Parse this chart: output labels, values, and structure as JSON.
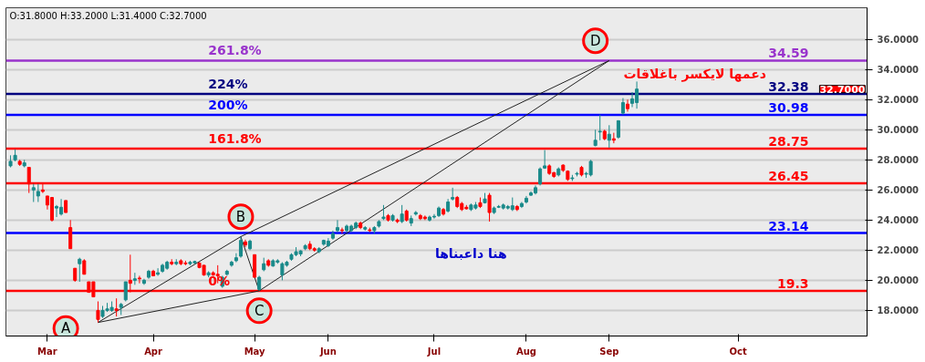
{
  "chart_data": {
    "type": "candlestick",
    "categories": [
      null,
      null,
      null,
      null,
      null,
      null,
      null,
      null,
      "Mar",
      null,
      null,
      null,
      null,
      null,
      null,
      null,
      null,
      null,
      null,
      null,
      null,
      null,
      null,
      null,
      null,
      null,
      null,
      null,
      null,
      null,
      null,
      "Apr",
      null,
      null,
      null,
      null,
      null,
      null,
      null,
      null,
      null,
      null,
      null,
      null,
      null,
      null,
      null,
      null,
      null,
      null,
      null,
      null,
      null,
      "May",
      null,
      null,
      null,
      null,
      null,
      null,
      null,
      null,
      null,
      null,
      null,
      null,
      null,
      null,
      null,
      "Jun",
      null,
      null,
      null,
      null,
      null,
      null,
      null,
      null,
      null,
      null,
      null,
      null,
      null,
      null,
      null,
      null,
      null,
      null,
      null,
      null,
      null,
      null,
      "Jul",
      null,
      null,
      null,
      null,
      null,
      null,
      null,
      null,
      null,
      null,
      null,
      null,
      null,
      null,
      null,
      null,
      null,
      null,
      null,
      "Aug",
      null,
      null,
      null,
      null,
      null,
      null,
      null,
      null,
      null,
      null,
      null,
      null,
      null,
      null,
      null,
      null,
      null,
      "Sep",
      null,
      null,
      null,
      null,
      null,
      null,
      null,
      null,
      null,
      null,
      null,
      null,
      null,
      null,
      null,
      null,
      null,
      null,
      null,
      null,
      null,
      null,
      null,
      null,
      null,
      null,
      null,
      "Oct",
      null,
      null,
      null,
      null,
      null,
      null,
      null,
      null,
      null,
      null,
      null,
      null,
      null,
      null,
      null,
      null,
      null,
      null,
      null,
      null,
      null,
      null,
      null,
      null,
      null,
      null,
      null
    ],
    "ohlc": [
      [
        27.6,
        28.3,
        27.5,
        27.9
      ],
      [
        28.0,
        28.7,
        27.9,
        28.3
      ],
      [
        27.9,
        28.0,
        27.6,
        27.7
      ],
      [
        27.6,
        28.0,
        27.5,
        27.8
      ],
      [
        27.5,
        27.5,
        25.8,
        26.4
      ],
      [
        26.0,
        26.4,
        25.2,
        26.15
      ],
      [
        25.6,
        26.4,
        25.2,
        25.9
      ],
      [
        26.0,
        26.4,
        25.8,
        25.9
      ],
      [
        25.6,
        25.6,
        24.7,
        25.0
      ],
      [
        25.5,
        25.5,
        23.9,
        24.0
      ],
      [
        24.8,
        25.0,
        24.2,
        24.9
      ],
      [
        24.4,
        25.4,
        24.3,
        24.85
      ],
      [
        25.3,
        25.3,
        24.5,
        24.5
      ],
      [
        23.5,
        24.0,
        22.1,
        22.1
      ],
      [
        20.8,
        20.8,
        19.9,
        20.0
      ],
      [
        21.1,
        21.5,
        19.9,
        21.4
      ],
      [
        21.3,
        21.4,
        20.4,
        20.4
      ],
      [
        19.9,
        19.9,
        19.2,
        19.2
      ],
      [
        19.9,
        19.9,
        18.9,
        18.9
      ],
      [
        18.0,
        18.6,
        17.2,
        17.4
      ],
      [
        17.6,
        18.3,
        17.5,
        18.0
      ],
      [
        18.0,
        18.5,
        17.9,
        18.1
      ],
      [
        18.0,
        18.6,
        17.9,
        18.2
      ],
      [
        18.1,
        18.8,
        17.6,
        18.0
      ],
      [
        18.2,
        18.5,
        17.7,
        18.4
      ],
      [
        18.7,
        19.9,
        18.6,
        19.9
      ],
      [
        20.0,
        21.7,
        19.2,
        19.8
      ],
      [
        20.0,
        20.5,
        19.7,
        20.1
      ],
      [
        20.15,
        20.3,
        19.8,
        20.1
      ],
      [
        19.8,
        20.1,
        19.7,
        20.0
      ],
      [
        20.2,
        20.7,
        20.1,
        20.6
      ],
      [
        20.6,
        20.7,
        20.3,
        20.3
      ],
      [
        20.4,
        20.8,
        20.3,
        20.5
      ],
      [
        20.6,
        21.1,
        20.5,
        21.0
      ],
      [
        20.8,
        21.3,
        20.7,
        21.2
      ],
      [
        21.2,
        21.4,
        21.0,
        21.1
      ],
      [
        21.1,
        21.4,
        21.0,
        21.2
      ],
      [
        21.3,
        21.4,
        21.0,
        21.1
      ],
      [
        21.15,
        21.3,
        21.0,
        21.1
      ],
      [
        21.1,
        21.3,
        21.0,
        21.2
      ],
      [
        21.15,
        21.3,
        21.1,
        21.25
      ],
      [
        21.15,
        21.2,
        20.8,
        20.85
      ],
      [
        21.0,
        21.0,
        20.3,
        20.35
      ],
      [
        20.35,
        20.6,
        20.2,
        20.5
      ],
      [
        20.5,
        20.6,
        20.3,
        20.35
      ],
      [
        20.4,
        21.0,
        19.8,
        20.3
      ],
      [
        19.6,
        20.3,
        19.5,
        20.2
      ],
      [
        20.4,
        20.7,
        20.3,
        20.6
      ],
      [
        21.0,
        21.3,
        20.9,
        21.2
      ],
      [
        21.3,
        21.8,
        21.2,
        21.5
      ],
      [
        21.6,
        22.9,
        21.5,
        22.65
      ],
      [
        22.55,
        22.7,
        22.2,
        22.35
      ],
      [
        22.1,
        22.7,
        22.0,
        22.6
      ],
      [
        21.7,
        21.7,
        20.2,
        20.2
      ],
      [
        19.4,
        20.3,
        19.3,
        20.2
      ],
      [
        20.7,
        21.5,
        20.6,
        21.1
      ],
      [
        21.3,
        21.4,
        20.9,
        21.0
      ],
      [
        20.95,
        21.4,
        20.9,
        21.3
      ],
      [
        21.2,
        21.4,
        21.1,
        21.3
      ],
      [
        20.35,
        21.2,
        20.0,
        21.1
      ],
      [
        21.0,
        21.3,
        20.9,
        21.2
      ],
      [
        21.4,
        21.8,
        21.3,
        21.7
      ],
      [
        21.7,
        22.2,
        21.6,
        21.9
      ],
      [
        21.75,
        22.0,
        21.6,
        21.95
      ],
      [
        22.1,
        22.4,
        22.0,
        22.3
      ],
      [
        22.4,
        22.6,
        22.0,
        22.1
      ],
      [
        22.1,
        22.2,
        21.9,
        22.0
      ],
      [
        21.9,
        22.2,
        21.8,
        22.1
      ],
      [
        22.4,
        22.7,
        22.3,
        22.65
      ],
      [
        22.3,
        22.8,
        22.2,
        22.6
      ],
      [
        22.8,
        23.3,
        22.7,
        23.1
      ],
      [
        23.3,
        24.0,
        23.2,
        23.5
      ],
      [
        23.35,
        23.5,
        23.1,
        23.3
      ],
      [
        23.3,
        23.7,
        23.2,
        23.6
      ],
      [
        23.3,
        23.7,
        23.2,
        23.6
      ],
      [
        23.5,
        23.9,
        23.4,
        23.8
      ],
      [
        23.8,
        23.9,
        23.4,
        23.5
      ],
      [
        23.4,
        23.6,
        23.3,
        23.5
      ],
      [
        23.35,
        23.5,
        23.2,
        23.3
      ],
      [
        23.3,
        23.6,
        23.1,
        23.5
      ],
      [
        23.6,
        24.0,
        23.5,
        23.9
      ],
      [
        24.1,
        25.0,
        24.0,
        24.2
      ],
      [
        24.3,
        24.4,
        23.9,
        24.0
      ],
      [
        24.0,
        24.4,
        23.9,
        24.3
      ],
      [
        24.0,
        24.1,
        23.8,
        23.9
      ],
      [
        23.9,
        25.0,
        23.8,
        24.4
      ],
      [
        24.6,
        24.7,
        23.9,
        24.0
      ],
      [
        23.8,
        24.3,
        23.6,
        24.1
      ],
      [
        24.4,
        24.6,
        24.3,
        24.5
      ],
      [
        24.3,
        24.4,
        24.0,
        24.1
      ],
      [
        24.2,
        24.3,
        24.0,
        24.1
      ],
      [
        24.0,
        24.3,
        23.9,
        24.2
      ],
      [
        24.2,
        24.4,
        24.1,
        24.25
      ],
      [
        24.3,
        24.9,
        24.2,
        24.8
      ],
      [
        24.7,
        24.8,
        24.3,
        24.4
      ],
      [
        24.6,
        25.4,
        24.5,
        25.2
      ],
      [
        25.4,
        26.15,
        25.3,
        25.5
      ],
      [
        25.5,
        25.6,
        24.8,
        24.9
      ],
      [
        25.1,
        25.2,
        24.6,
        24.7
      ],
      [
        24.85,
        25.0,
        24.7,
        24.75
      ],
      [
        24.7,
        25.1,
        24.6,
        25.0
      ],
      [
        24.8,
        25.2,
        24.7,
        25.0
      ],
      [
        25.15,
        25.5,
        24.8,
        24.9
      ],
      [
        25.15,
        25.8,
        25.1,
        25.4
      ],
      [
        25.65,
        25.8,
        23.9,
        24.5
      ],
      [
        24.5,
        24.9,
        24.4,
        24.8
      ],
      [
        24.85,
        25.0,
        24.8,
        24.9
      ],
      [
        24.8,
        25.1,
        24.7,
        25.0
      ],
      [
        24.8,
        25.0,
        24.7,
        24.9
      ],
      [
        24.7,
        25.5,
        24.6,
        24.95
      ],
      [
        24.9,
        25.0,
        24.6,
        24.7
      ],
      [
        24.9,
        25.2,
        24.8,
        25.1
      ],
      [
        25.2,
        25.6,
        25.1,
        25.45
      ],
      [
        25.65,
        25.9,
        25.6,
        25.8
      ],
      [
        25.8,
        26.3,
        25.7,
        26.15
      ],
      [
        26.4,
        27.5,
        26.3,
        27.4
      ],
      [
        27.45,
        28.65,
        27.4,
        27.6
      ],
      [
        27.6,
        27.7,
        27.0,
        27.1
      ],
      [
        27.15,
        27.2,
        26.8,
        26.9
      ],
      [
        27.0,
        27.5,
        26.9,
        27.4
      ],
      [
        27.65,
        27.7,
        27.2,
        27.3
      ],
      [
        27.25,
        27.3,
        26.6,
        26.7
      ],
      [
        26.75,
        27.0,
        26.6,
        26.8
      ],
      [
        27.05,
        27.2,
        26.9,
        27.1
      ],
      [
        27.5,
        27.6,
        26.9,
        27.0
      ],
      [
        27.05,
        27.2,
        26.8,
        27.1
      ],
      [
        27.0,
        28.0,
        26.9,
        27.9
      ],
      [
        28.95,
        30.0,
        28.9,
        29.3
      ],
      [
        29.85,
        31.0,
        29.3,
        29.9
      ],
      [
        29.9,
        30.0,
        29.3,
        29.4
      ],
      [
        29.3,
        30.3,
        28.8,
        29.7
      ],
      [
        29.4,
        29.8,
        29.1,
        29.3
      ],
      [
        29.5,
        30.6,
        29.4,
        30.6
      ],
      [
        31.1,
        32.1,
        31.0,
        31.8
      ],
      [
        31.7,
        32.0,
        31.2,
        31.4
      ],
      [
        31.75,
        32.5,
        31.5,
        32.05
      ],
      [
        31.8,
        33.2,
        31.4,
        32.7
      ],
      null,
      null,
      null,
      null,
      null,
      null,
      null,
      null,
      null,
      null,
      null,
      null,
      null,
      null,
      null,
      null,
      null,
      null,
      null,
      null,
      null,
      null,
      null,
      null,
      null,
      null,
      null,
      null,
      null,
      null,
      null,
      null,
      null,
      null,
      null,
      null,
      null,
      null,
      null,
      null,
      null,
      null,
      null,
      null,
      null,
      null,
      null,
      null,
      null
    ],
    "colors": [
      "#1a8a8a",
      "#1a8a8a",
      "#ff0000",
      "#1a8a8a",
      "#ff0000",
      "#1a8a8a",
      "#1a8a8a",
      "#ff0000",
      "#ff0000",
      "#ff0000",
      "#1a8a8a",
      "#1a8a8a",
      "#ff0000",
      "#ff0000",
      "#ff0000",
      "#1a8a8a",
      "#ff0000",
      "#ff0000",
      "#ff0000",
      "#ff0000",
      "#1a8a8a",
      "#1a8a8a",
      "#1a8a8a",
      "#ff0000",
      "#1a8a8a",
      "#1a8a8a",
      "#ff0000",
      "#1a8a8a",
      "#ff0000",
      "#1a8a8a",
      "#1a8a8a",
      "#ff0000",
      "#1a8a8a",
      "#1a8a8a",
      "#1a8a8a",
      "#ff0000",
      "#1a8a8a",
      "#ff0000",
      "#ff0000",
      "#1a8a8a",
      "#1a8a8a",
      "#ff0000",
      "#ff0000",
      "#1a8a8a",
      "#ff0000",
      "#ff0000",
      "#1a8a8a",
      "#1a8a8a",
      "#1a8a8a",
      "#1a8a8a",
      "#1a8a8a",
      "#ff0000",
      "#1a8a8a",
      "#ff0000",
      "#1a8a8a",
      "#1a8a8a",
      "#ff0000",
      "#1a8a8a",
      "#1a8a8a",
      "#1a8a8a",
      "#1a8a8a",
      "#1a8a8a",
      "#1a8a8a",
      "#1a8a8a",
      "#1a8a8a",
      "#ff0000",
      "#ff0000",
      "#1a8a8a",
      "#1a8a8a",
      "#1a8a8a",
      "#1a8a8a",
      "#1a8a8a",
      "#ff0000",
      "#1a8a8a",
      "#1a8a8a",
      "#1a8a8a",
      "#ff0000",
      "#1a8a8a",
      "#ff0000",
      "#1a8a8a",
      "#1a8a8a",
      "#1a8a8a",
      "#ff0000",
      "#1a8a8a",
      "#ff0000",
      "#1a8a8a",
      "#ff0000",
      "#1a8a8a",
      "#1a8a8a",
      "#ff0000",
      "#ff0000",
      "#1a8a8a",
      "#1a8a8a",
      "#1a8a8a",
      "#ff0000",
      "#1a8a8a",
      "#1a8a8a",
      "#ff0000",
      "#ff0000",
      "#ff0000",
      "#1a8a8a",
      "#1a8a8a",
      "#ff0000",
      "#1a8a8a",
      "#ff0000",
      "#1a8a8a",
      "#1a8a8a",
      "#1a8a8a",
      "#1a8a8a",
      "#1a8a8a",
      "#ff0000",
      "#1a8a8a",
      "#1a8a8a",
      "#1a8a8a",
      "#1a8a8a",
      "#1a8a8a",
      "#1a8a8a",
      "#ff0000",
      "#ff0000",
      "#1a8a8a",
      "#ff0000",
      "#ff0000",
      "#1a8a8a",
      "#1a8a8a",
      "#ff0000",
      "#1a8a8a",
      "#1a8a8a",
      "#1a8a8a",
      "#1a8a8a",
      "#ff0000",
      "#1a8a8a",
      "#ff0000",
      "#1a8a8a",
      "#1a8a8a",
      "#ff0000",
      "#1a8a8a",
      "#1a8a8a",
      null,
      null,
      null,
      null,
      null,
      null,
      null,
      null,
      null,
      null,
      null,
      null,
      null,
      null,
      null,
      null,
      null,
      null,
      null,
      null,
      null,
      null,
      null,
      null,
      null,
      null,
      null,
      null,
      null,
      null,
      null,
      null,
      null,
      null,
      null,
      null,
      null,
      null,
      null,
      null,
      null,
      null,
      null,
      null,
      null,
      null,
      null,
      null,
      null
    ],
    "series": [
      {
        "type": "line",
        "color": "#222222",
        "values": [
          null,
          null,
          null,
          null,
          null,
          null,
          null,
          null,
          null,
          null,
          null,
          null,
          null,
          null,
          null,
          null,
          null,
          null,
          null,
          17.2,
          null,
          null,
          null,
          null,
          null,
          null,
          null,
          null,
          null,
          null,
          null,
          null,
          null,
          null,
          null,
          null,
          null,
          null,
          null,
          null,
          null,
          null,
          null,
          null,
          null,
          null,
          null,
          null,
          null,
          null,
          22.9,
          null,
          null,
          null,
          19.3,
          null,
          null,
          null,
          null,
          null,
          null,
          null,
          null,
          null,
          null,
          null,
          null,
          null,
          null,
          null,
          null,
          null,
          null,
          null,
          null,
          null,
          null,
          null,
          null,
          null,
          null,
          null,
          null,
          null,
          null,
          null,
          null,
          null,
          null,
          null,
          null,
          null,
          null,
          null,
          null,
          null,
          null,
          null,
          null,
          null,
          null,
          null,
          null,
          null,
          null,
          null,
          null,
          null,
          null,
          null,
          null,
          null,
          null,
          null,
          null,
          null,
          null,
          null,
          null,
          null,
          null,
          null,
          null,
          null,
          null,
          null,
          null,
          null,
          null,
          null,
          34.59,
          null,
          null,
          null,
          null,
          null,
          null,
          null,
          null,
          null,
          null,
          null,
          null,
          null,
          null,
          null,
          null,
          null,
          null,
          null,
          null,
          null,
          null,
          null,
          null,
          null,
          null,
          null,
          null,
          null,
          null,
          null,
          null,
          null,
          null,
          null,
          null,
          null,
          null,
          null,
          null,
          null,
          null,
          null,
          null,
          null,
          null,
          null,
          null,
          null,
          null,
          null,
          null,
          null,
          null,
          null
        ]
      },
      {
        "type": "line",
        "color": "#222222",
        "values": [
          null,
          null,
          null,
          null,
          null,
          null,
          null,
          null,
          null,
          null,
          null,
          null,
          null,
          null,
          null,
          null,
          null,
          null,
          null,
          17.2,
          null,
          null,
          null,
          null,
          null,
          null,
          null,
          null,
          null,
          null,
          null,
          null,
          null,
          null,
          null,
          null,
          null,
          null,
          null,
          null,
          null,
          null,
          null,
          null,
          null,
          null,
          null,
          null,
          null,
          null,
          null,
          null,
          null,
          null,
          19.3,
          null,
          null,
          null,
          null,
          null,
          null,
          null,
          null,
          null,
          null,
          null,
          null,
          null,
          null,
          null,
          null,
          null,
          null,
          null,
          null,
          null,
          null,
          null,
          null,
          null,
          null,
          null,
          null,
          null,
          null,
          null,
          null,
          null,
          null,
          null,
          null,
          null,
          null,
          null,
          null,
          null,
          null,
          null,
          null,
          null,
          null,
          null,
          null,
          null,
          null,
          null,
          null,
          null,
          null,
          null,
          null,
          null,
          null,
          null,
          null,
          null,
          null,
          null,
          null,
          null,
          null,
          null,
          null,
          null,
          null,
          null,
          null,
          null,
          null,
          null,
          null,
          null,
          null,
          null,
          null,
          null,
          null,
          null,
          null,
          null,
          null,
          null,
          null,
          null,
          null,
          null,
          null,
          null,
          null,
          null,
          null,
          null,
          null,
          null,
          null,
          null,
          null,
          null,
          null,
          null,
          null,
          null,
          null,
          null,
          null,
          null,
          null,
          null,
          null,
          null,
          null,
          null,
          null,
          null,
          null,
          null,
          null,
          null,
          null,
          null,
          null,
          null,
          null,
          null,
          null,
          null
        ]
      },
      {
        "type": "line",
        "color": "#222222",
        "values": [
          null,
          null,
          null,
          null,
          null,
          null,
          null,
          null,
          null,
          null,
          null,
          null,
          null,
          null,
          null,
          null,
          null,
          null,
          null,
          null,
          null,
          null,
          null,
          null,
          null,
          null,
          null,
          null,
          null,
          null,
          null,
          null,
          null,
          null,
          null,
          null,
          null,
          null,
          null,
          null,
          null,
          null,
          null,
          null,
          null,
          null,
          null,
          null,
          null,
          null,
          22.9,
          null,
          null,
          null,
          null,
          null,
          null,
          null,
          null,
          null,
          null,
          null,
          null,
          null,
          null,
          null,
          null,
          null,
          null,
          null,
          null,
          null,
          null,
          null,
          null,
          null,
          null,
          null,
          null,
          null,
          null,
          null,
          null,
          null,
          null,
          null,
          null,
          null,
          null,
          null,
          null,
          null,
          null,
          null,
          null,
          null,
          null,
          null,
          null,
          null,
          null,
          null,
          null,
          null,
          null,
          null,
          null,
          null,
          null,
          null,
          null,
          null,
          null,
          null,
          null,
          null,
          null,
          null,
          null,
          null,
          null,
          null,
          null,
          null,
          null,
          null,
          null,
          null,
          null,
          null,
          34.59,
          null,
          null,
          null,
          null,
          null,
          null,
          null,
          null,
          null,
          null,
          null,
          null,
          null,
          null,
          null,
          null,
          null,
          null,
          null,
          null,
          null,
          null,
          null,
          null,
          null,
          null,
          null,
          null,
          null,
          null,
          null,
          null,
          null,
          null,
          null,
          null,
          null,
          null,
          null,
          null,
          null,
          null,
          null,
          null,
          null,
          null,
          null,
          null,
          null,
          null,
          null,
          null,
          null,
          null,
          null
        ]
      }
    ],
    "ylim": [
      16.3,
      38.1
    ],
    "yticks": [
      {
        "value": 18,
        "label": "18.0000"
      },
      {
        "value": 20,
        "label": "20.0000"
      },
      {
        "value": 22,
        "label": "22.0000"
      },
      {
        "value": 24,
        "label": "24.0000"
      },
      {
        "value": 26,
        "label": "26.0000"
      },
      {
        "value": 28,
        "label": "28.0000"
      },
      {
        "value": 30,
        "label": "30.0000"
      },
      {
        "value": 32,
        "label": "32.0000"
      },
      {
        "value": 34,
        "label": "34.0000"
      },
      {
        "value": 36,
        "label": "36.0000"
      }
    ],
    "grid": "y",
    "ref_lines": [
      {
        "axis": "y",
        "value": 34.59,
        "label": "34.59",
        "color": "#9933cc"
      },
      {
        "axis": "y",
        "value": 32.38,
        "label": "32.38",
        "color": "#000080"
      },
      {
        "axis": "y",
        "value": 30.98,
        "label": "30.98",
        "color": "#0000ff"
      },
      {
        "axis": "y",
        "value": 28.75,
        "label": "28.75",
        "color": "#ff0000"
      },
      {
        "axis": "y",
        "value": 26.45,
        "label": "26.45",
        "color": "#ff0000"
      },
      {
        "axis": "y",
        "value": 23.14,
        "label": "23.14",
        "color": "#0000ff"
      },
      {
        "axis": "y",
        "value": 19.3,
        "label": "19.3",
        "color": "#ff0000"
      }
    ],
    "annotations": [
      "O:31.8000  H:33.2000  L:31.4000  C:32.7000",
      "32.7000",
      "261.8%",
      "224%",
      "200%",
      "161.8%",
      "0%",
      "دعمها لايكسر باغلاقات",
      "هنا داعبناها",
      "A",
      "B",
      "C",
      "D"
    ]
  }
}
